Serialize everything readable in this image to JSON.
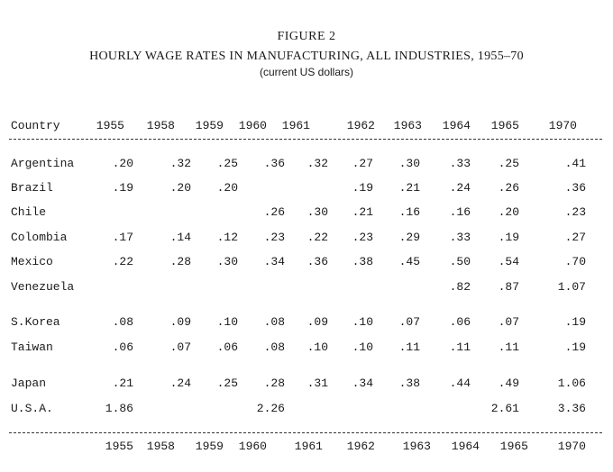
{
  "figure": {
    "label": "FIGURE 2",
    "title": "HOURLY WAGE RATES IN MANUFACTURING, ALL INDUSTRIES, 1955–70",
    "subtitle": "(current US dollars)"
  },
  "table": {
    "header_country": "Country",
    "years": [
      "1955",
      "1958",
      "1959",
      "1960",
      "1961",
      "1962",
      "1963",
      "1964",
      "1965",
      "1970"
    ],
    "rows": [
      {
        "country": "Argentina",
        "values": [
          ".20",
          ".32",
          ".25",
          ".36",
          ".32",
          ".27",
          ".30",
          ".33",
          ".25",
          ".41"
        ]
      },
      {
        "country": "Brazil",
        "values": [
          ".19",
          ".20",
          ".20",
          "",
          "",
          ".19",
          ".21",
          ".24",
          ".26",
          ".36"
        ]
      },
      {
        "country": "Chile",
        "values": [
          "",
          "",
          "",
          ".26",
          ".30",
          ".21",
          ".16",
          ".16",
          ".20",
          ".23"
        ]
      },
      {
        "country": "Colombia",
        "values": [
          ".17",
          ".14",
          ".12",
          ".23",
          ".22",
          ".23",
          ".29",
          ".33",
          ".19",
          ".27"
        ]
      },
      {
        "country": "Mexico",
        "values": [
          ".22",
          ".28",
          ".30",
          ".34",
          ".36",
          ".38",
          ".45",
          ".50",
          ".54",
          ".70"
        ]
      },
      {
        "country": "Venezuela",
        "values": [
          "",
          "",
          "",
          "",
          "",
          "",
          "",
          ".82",
          ".87",
          "1.07"
        ]
      },
      {
        "country": "S.Korea",
        "values": [
          ".08",
          ".09",
          ".10",
          ".08",
          ".09",
          ".10",
          ".07",
          ".06",
          ".07",
          ".19"
        ]
      },
      {
        "country": "Taiwan",
        "values": [
          ".06",
          ".07",
          ".06",
          ".08",
          ".10",
          ".10",
          ".11",
          ".11",
          ".11",
          ".19"
        ]
      },
      {
        "country": "Japan",
        "values": [
          ".21",
          ".24",
          ".25",
          ".28",
          ".31",
          ".34",
          ".38",
          ".44",
          ".49",
          "1.06"
        ]
      },
      {
        "country": "U.S.A.",
        "values": [
          "1.86",
          "",
          "",
          "2.26",
          "",
          "",
          "",
          "",
          "2.61",
          "3.36"
        ]
      }
    ]
  }
}
